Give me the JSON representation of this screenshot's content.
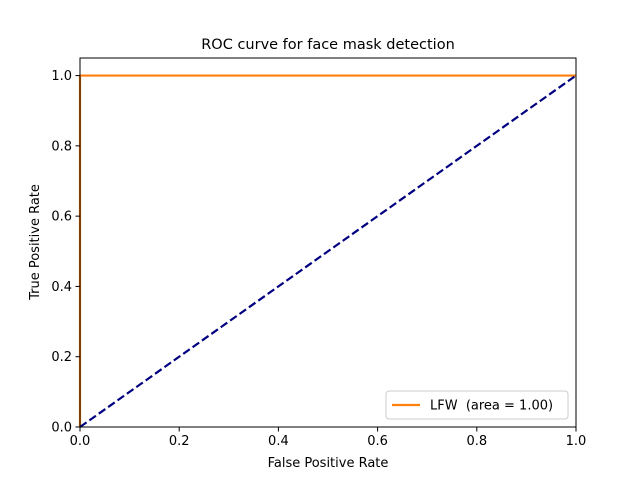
{
  "chart_data": {
    "type": "line",
    "title": "ROC curve for face mask detection",
    "xlabel": "False Positive Rate",
    "ylabel": "True Positive Rate",
    "xlim": [
      0.0,
      1.0
    ],
    "ylim": [
      0.0,
      1.05
    ],
    "xticks": [
      0.0,
      0.2,
      0.4,
      0.6,
      0.8,
      1.0
    ],
    "xtick_labels": [
      "0.0",
      "0.2",
      "0.4",
      "0.6",
      "0.8",
      "1.0"
    ],
    "yticks": [
      0.0,
      0.2,
      0.4,
      0.6,
      0.8,
      1.0
    ],
    "ytick_labels": [
      "0.0",
      "0.2",
      "0.4",
      "0.6",
      "0.8",
      "1.0"
    ],
    "grid": false,
    "legend_position": "lower right",
    "series": [
      {
        "name": "LFW  (area = 1.00)",
        "color": "#ff7f0e",
        "style": "solid",
        "in_legend": true,
        "x": [
          0.0,
          0.0,
          1.0
        ],
        "y": [
          0.0,
          1.0,
          1.0
        ]
      },
      {
        "color": "#000080",
        "style": "dashed",
        "in_legend": false,
        "x": [
          0.0,
          1.0
        ],
        "y": [
          0.0,
          1.0
        ]
      }
    ]
  }
}
